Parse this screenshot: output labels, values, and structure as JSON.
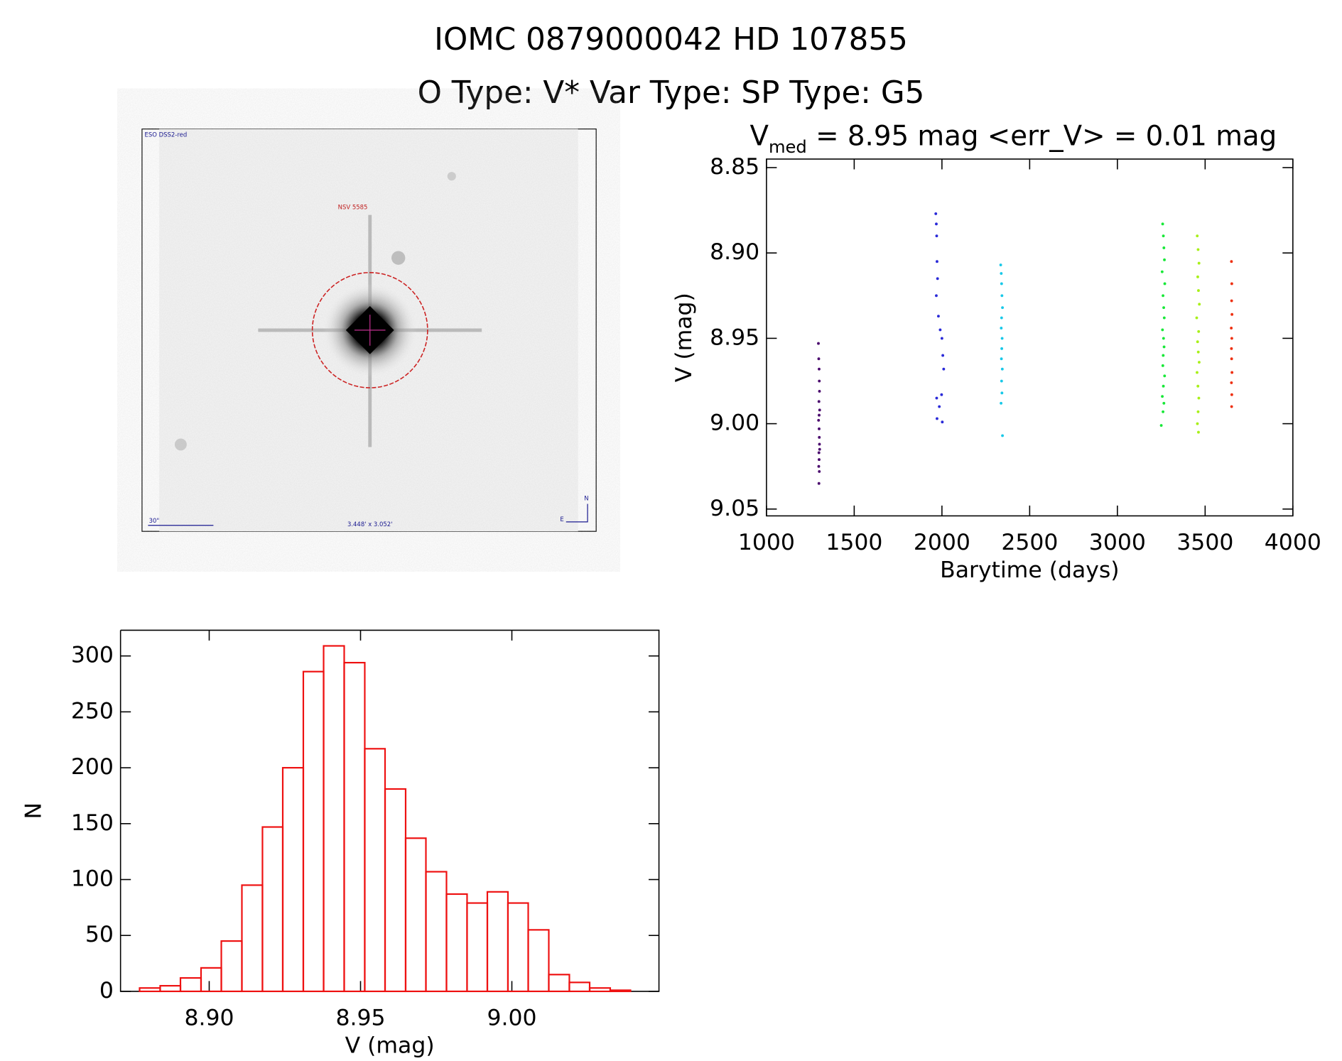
{
  "title": "IOMC 0879000042   HD 107855",
  "subtitle": "O Type: V*  Var Type:    SP Type: G5",
  "image": {
    "survey": "ESO DSS2-red",
    "object": "NSV 5585",
    "scale": "30\"",
    "size": "3.448' x 3.052'",
    "north": "N",
    "east": "E"
  },
  "chart_data": [
    {
      "type": "scatter",
      "title": {
        "symbol": "V",
        "subscript": "med",
        "text": " = 8.95 mag <err_V> = 0.01 mag"
      },
      "x_label": "Barytime (days)",
      "y_label": "V (mag)",
      "xlim": [
        1000,
        4000
      ],
      "xticks": [
        1000,
        1500,
        2000,
        2500,
        3000,
        3500,
        4000
      ],
      "ylim": [
        9.054,
        8.845
      ],
      "yticks": [
        {
          "value": 9.05,
          "label": "9.05"
        },
        {
          "value": 9.0,
          "label": "9.00"
        },
        8.95,
        {
          "value": 8.9,
          "label": "8.90"
        },
        8.85
      ],
      "series": [
        {
          "color": "#4b0a6e",
          "x": [
            1296,
            1298,
            1300,
            1301,
            1302,
            1299,
            1303,
            1297,
            1300,
            1301,
            1302,
            1299,
            1300,
            1298,
            1301,
            1303,
            1300,
            1299
          ],
          "values": [
            8.953,
            8.962,
            8.968,
            8.975,
            8.981,
            8.987,
            8.992,
            8.998,
            9.003,
            9.008,
            9.012,
            9.017,
            9.021,
            9.025,
            9.028,
            9.015,
            8.995,
            9.035
          ]
        },
        {
          "color": "#2a2ad8",
          "x": [
            1965,
            1968,
            1970,
            1972,
            1975,
            1968,
            1980,
            1990,
            2000,
            2005,
            2010,
            1970,
            1985,
            1998,
            2002,
            1972
          ],
          "values": [
            8.877,
            8.883,
            8.89,
            8.905,
            8.915,
            8.925,
            8.937,
            8.945,
            8.95,
            8.96,
            8.968,
            8.985,
            8.99,
            8.983,
            8.999,
            8.997
          ]
        },
        {
          "color": "#18c8e8",
          "x": [
            2335,
            2338,
            2340,
            2342,
            2345,
            2340,
            2338,
            2343,
            2341,
            2339,
            2344,
            2340,
            2342,
            2337,
            2345
          ],
          "values": [
            8.907,
            8.912,
            8.918,
            8.925,
            8.932,
            8.938,
            8.944,
            8.95,
            8.956,
            8.962,
            8.968,
            8.975,
            8.982,
            8.988,
            9.007
          ]
        },
        {
          "color": "#18e838",
          "x": [
            3258,
            3262,
            3265,
            3268,
            3255,
            3270,
            3260,
            3264,
            3267,
            3257,
            3263,
            3266,
            3261,
            3259,
            3269,
            3262,
            3256,
            3265,
            3260,
            3250
          ],
          "values": [
            8.883,
            8.89,
            8.897,
            8.904,
            8.911,
            8.918,
            8.925,
            8.932,
            8.938,
            8.945,
            8.95,
            8.955,
            8.96,
            8.966,
            8.972,
            8.978,
            8.984,
            8.988,
            8.993,
            9.001
          ]
        },
        {
          "color": "#a8f018",
          "x": [
            3455,
            3460,
            3465,
            3458,
            3462,
            3467,
            3452,
            3463,
            3457,
            3461,
            3466,
            3454,
            3459,
            3464,
            3460,
            3456,
            3462
          ],
          "values": [
            8.89,
            8.898,
            8.906,
            8.914,
            8.922,
            8.93,
            8.938,
            8.946,
            8.952,
            8.958,
            8.964,
            8.97,
            8.978,
            8.985,
            8.993,
            9.0,
            9.005
          ]
        },
        {
          "color": "#ee3010",
          "x": [
            3650,
            3652,
            3651,
            3653,
            3649,
            3652,
            3650,
            3651,
            3653,
            3650,
            3652,
            3651
          ],
          "values": [
            8.905,
            8.918,
            8.928,
            8.936,
            8.944,
            8.95,
            8.956,
            8.962,
            8.97,
            8.976,
            8.983,
            8.99
          ]
        }
      ]
    },
    {
      "type": "histogram",
      "x_label": "V (mag)",
      "y_label": "N",
      "color": "#ee1111",
      "bins": [
        8.877,
        8.8838,
        8.8905,
        8.8973,
        8.904,
        8.9108,
        8.9176,
        8.9243,
        8.9311,
        8.9378,
        8.9446,
        8.9514,
        8.9581,
        8.9649,
        8.9716,
        8.9784,
        8.9852,
        8.9919,
        8.9987,
        9.0054,
        9.0122,
        9.019,
        9.0257,
        9.0325,
        9.0392
      ],
      "values": [
        3,
        5,
        12,
        21,
        45,
        95,
        147,
        200,
        286,
        309,
        294,
        217,
        181,
        137,
        107,
        87,
        79,
        89,
        79,
        55,
        15,
        8,
        3,
        1
      ],
      "xlim": [
        8.8707,
        9.0486
      ],
      "xticks": [
        {
          "value": 8.9,
          "label": "8.90"
        },
        8.95,
        {
          "value": 9.0,
          "label": "9.00"
        }
      ],
      "ylim": [
        0,
        323
      ],
      "yticks": [
        0,
        50,
        100,
        150,
        200,
        250,
        300
      ]
    }
  ]
}
